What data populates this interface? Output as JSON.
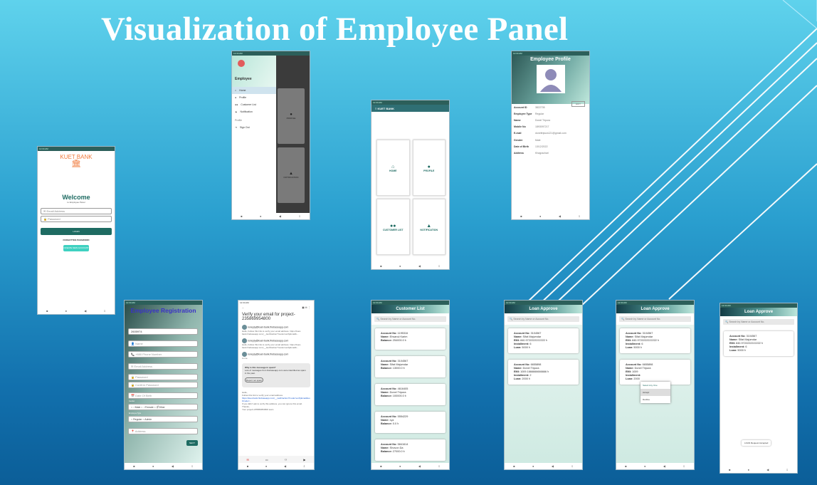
{
  "title": "Visualization of Employee Panel",
  "status_bar": "12:34 AM",
  "login": {
    "brand": "KUET BANK",
    "bank_icon": "bank-icon",
    "welcome": "Welcome",
    "subtitle": "to Employee Panel",
    "email_placeholder": "Email Address",
    "password_placeholder": "Password",
    "login_button": "LOGIN",
    "forgot": "FORGOTTEN PASSWORD",
    "create": "CREATE NEW ACCOUNT"
  },
  "drawer": {
    "header": "Employee",
    "items": [
      "Home",
      "Profile",
      "Customer List",
      "Notification"
    ],
    "section": "Profile",
    "signout": "Sign Out",
    "cards": [
      "PROFILE",
      "NOTIFICATION"
    ]
  },
  "home": {
    "app_bar": "KUET BANK",
    "tiles": [
      "HOME",
      "PROFILE",
      "CUSTOMER LIST",
      "NOTIFICATION"
    ]
  },
  "profile": {
    "title": "Employee Profile",
    "edit": "EDIT",
    "rows": [
      {
        "k": "Account ID",
        "v": "3822705"
      },
      {
        "k": "Employee Type",
        "v": "Regular"
      },
      {
        "k": "Name",
        "v": "Donel Tripura"
      },
      {
        "k": "Mobile No",
        "v": "1893097217"
      },
      {
        "k": "E-mail",
        "v": "doneltripura121@gmail.com"
      },
      {
        "k": "Gender",
        "v": "Male"
      },
      {
        "k": "Date of Birth",
        "v": "13/12/2022"
      },
      {
        "k": "Address",
        "v": "Khagrachari"
      }
    ]
  },
  "registration": {
    "title": "Employee Registration",
    "account": "2605974",
    "name": "Name",
    "code": "+880",
    "phone": "Phone Number",
    "email": "Email Address",
    "password": "Password",
    "confirm": "Confirm  Password",
    "dob": "Date Of Birth",
    "gender_label": "Gender",
    "male": "Male",
    "female": "Female",
    "other": "Other",
    "type_label": "Employee Type",
    "regular": "Regular",
    "admin": "Admin",
    "address": "Address",
    "next": "NEXT"
  },
  "gmail": {
    "subject": "Verify your email for project-235869954800",
    "inbox": "Inbox",
    "sender1": "noreply@kuet-bank.firebaseapp.com",
    "sender2": "noreply@kuet-bank.firebaseapp.com",
    "sender3": "noreply@kuet-bank.firebaseapp.com",
    "to_me": "to me",
    "snippet": "Hello, Follow this link to verify your email address. https://kuet-bank.firebaseapp.com/__/auth/action?mode=verifyEmail&...",
    "warn_title": "Why is this message in spam?",
    "warn_text": "Lots of messages from firebaseapp.com were identified as spam in the past.",
    "report": "Report not spam",
    "body1": "Hello,",
    "body2": "Follow this link to verify your email address.",
    "link": "https://kuet-bank.firebaseapp.com/__/auth/action?mode=verifyEmail&oobCode=...",
    "body3": "If you didn't ask to verify this address, you can ignore this email.",
    "thanks": "Thanks,",
    "team": "Your project-235869954800 team",
    "reply": "Reply",
    "reply_all": "Reply all",
    "forward": "Forward"
  },
  "customer_list": {
    "title": "Customer List",
    "search": "Search by Name or Account No.",
    "items": [
      {
        "acc": "1195316",
        "name": "Ehsanul Karim",
        "bal": "254000.0 ৳"
      },
      {
        "acc": "3104567",
        "name": "Sifat Majumdar",
        "bal": "13000.0 ৳"
      },
      {
        "acc": "4616405",
        "name": "Donel Tripura",
        "bal": "100000.0 ৳"
      },
      {
        "acc": "5554229",
        "name": "xyz",
        "bal": "0.0 ৳"
      },
      {
        "acc": "5841614",
        "name": "Shovon Da",
        "bal": "27000.0 ৳"
      },
      {
        "acc": "5909425",
        "name": "",
        "bal": ""
      }
    ]
  },
  "loan1": {
    "title": "Loan Approve",
    "search": "Search by Name or Account No.",
    "items": [
      {
        "acc": "3104567",
        "name": "Sifat Majumdar",
        "emi": "840.9722222222222 ৳",
        "inst": "6",
        "loan": "5000 ৳"
      },
      {
        "acc": "6655898",
        "name": "Donel Tripura",
        "emi": "1009.1666666666666 ৳",
        "inst": "2",
        "loan": "2000 ৳"
      }
    ]
  },
  "loan2": {
    "title": "Loan Approve",
    "search": "Search by Name or Account No.",
    "menu_title": "Select Any One",
    "accept": "Accept",
    "decline": "Decline",
    "items": [
      {
        "acc": "3104567",
        "name": "Sifat Majumdar",
        "emi": "840.9722222222222 ৳",
        "inst": "6",
        "loan": "5000 ৳"
      },
      {
        "acc": "6655898",
        "name": "Donel Tripura",
        "emi": "1009",
        "inst": "",
        "loan": "2000"
      }
    ]
  },
  "loan3": {
    "title": "Loan Approve",
    "search": "Search by Name or Account No.",
    "toast": "LOAN Request Accepted",
    "items": [
      {
        "acc": "3104567",
        "name": "Sifat Majumdar",
        "emi": "840.9722222222222 ৳",
        "inst": "6",
        "loan": "5000 ৳"
      }
    ]
  },
  "labels": {
    "acc": "Account No: ",
    "name": "Name: ",
    "bal": "Balance: ",
    "emi": "EMI: ",
    "inst": "Installment: ",
    "loan": "Loan: "
  }
}
